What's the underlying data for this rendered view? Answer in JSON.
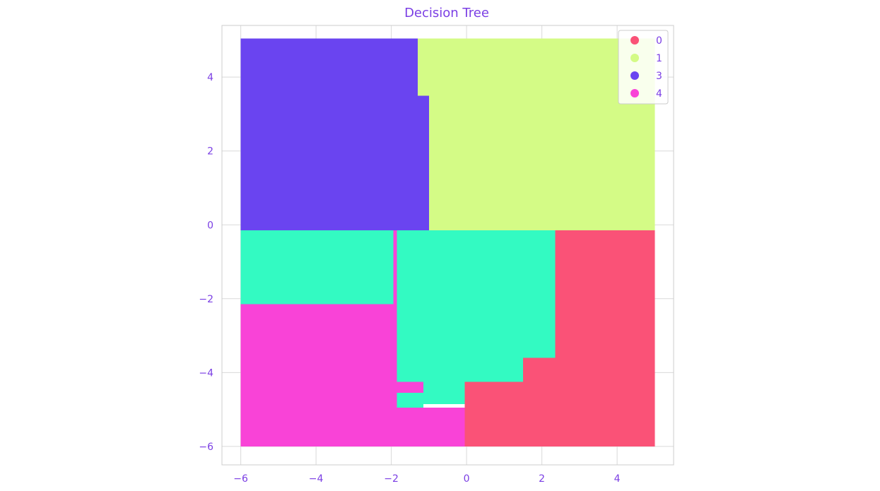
{
  "chart_data": {
    "type": "scatter",
    "title": "Decision Tree",
    "xlabel": "",
    "ylabel": "",
    "xlim": [
      -6.5,
      5.5
    ],
    "ylim": [
      -6.5,
      5.4
    ],
    "xticks": [
      -6,
      -4,
      -2,
      0,
      2,
      4
    ],
    "yticks": [
      -6,
      -4,
      -2,
      0,
      2,
      4
    ],
    "grid": true,
    "legend_position": "top-right",
    "colors": {
      "text": "#7b3fe4",
      "grid": "#d9d9d9",
      "frame": "#cccccc",
      "class_0": "#fa5277",
      "class_1": "#d4fb86",
      "class_2": "#33fac2",
      "class_3": "#6a44f0",
      "class_4": "#f943d7"
    },
    "legend": [
      {
        "label": "0",
        "color": "#fa5277"
      },
      {
        "label": "1",
        "color": "#d4fb86"
      },
      {
        "label": "3",
        "color": "#6a44f0"
      },
      {
        "label": "4",
        "color": "#f943d7"
      }
    ],
    "regions": [
      {
        "class": "class_3",
        "x": [
          -6.0,
          -1.3
        ],
        "y": [
          3.5,
          5.05
        ]
      },
      {
        "class": "class_3",
        "x": [
          -6.0,
          -1.0
        ],
        "y": [
          -0.15,
          3.5
        ]
      },
      {
        "class": "class_1",
        "x": [
          -1.3,
          5.0
        ],
        "y": [
          3.5,
          5.05
        ]
      },
      {
        "class": "class_1",
        "x": [
          -1.0,
          5.0
        ],
        "y": [
          -0.15,
          3.5
        ]
      },
      {
        "class": "class_2",
        "x": [
          -6.0,
          -1.95
        ],
        "y": [
          -2.15,
          -0.15
        ]
      },
      {
        "class": "class_2",
        "x": [
          -1.85,
          2.35
        ],
        "y": [
          -3.6,
          -0.15
        ]
      },
      {
        "class": "class_2",
        "x": [
          -1.85,
          1.5
        ],
        "y": [
          -4.25,
          -3.6
        ]
      },
      {
        "class": "class_2",
        "x": [
          -1.15,
          -0.05
        ],
        "y": [
          -4.85,
          -4.25
        ]
      },
      {
        "class": "class_2",
        "x": [
          -1.95,
          -1.15
        ],
        "y": [
          -4.95,
          -4.55
        ]
      },
      {
        "class": "class_4",
        "x": [
          -6.0,
          -1.85
        ],
        "y": [
          -6.0,
          -2.15
        ]
      },
      {
        "class": "class_4",
        "x": [
          -1.95,
          -1.85
        ],
        "y": [
          -2.15,
          -0.15
        ]
      },
      {
        "class": "class_4",
        "x": [
          -1.85,
          -0.05
        ],
        "y": [
          -6.0,
          -4.95
        ]
      },
      {
        "class": "class_4",
        "x": [
          -1.95,
          -1.15
        ],
        "y": [
          -4.55,
          -4.25
        ]
      },
      {
        "class": "class_0",
        "x": [
          2.35,
          5.0
        ],
        "y": [
          -6.0,
          -0.15
        ]
      },
      {
        "class": "class_0",
        "x": [
          1.5,
          2.35
        ],
        "y": [
          -6.0,
          -3.6
        ]
      },
      {
        "class": "class_0",
        "x": [
          -0.05,
          1.5
        ],
        "y": [
          -6.0,
          -4.25
        ]
      }
    ]
  }
}
